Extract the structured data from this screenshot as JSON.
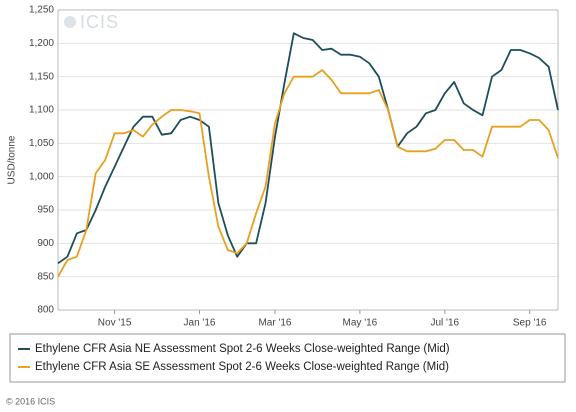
{
  "chart_data": {
    "type": "line",
    "watermark": "ICIS",
    "ylabel": "USD/tonne",
    "footer": "© 2016 ICIS",
    "categories": [
      null,
      null,
      null,
      null,
      null,
      null,
      "Nov '15",
      null,
      null,
      null,
      null,
      null,
      null,
      null,
      null,
      "Jan '16",
      null,
      null,
      null,
      null,
      null,
      null,
      null,
      "Mar '16",
      null,
      null,
      null,
      null,
      null,
      null,
      null,
      null,
      "May '16",
      null,
      null,
      null,
      null,
      null,
      null,
      null,
      null,
      "Jul '16",
      null,
      null,
      null,
      null,
      null,
      null,
      null,
      null,
      "Sep '16",
      null,
      null,
      null
    ],
    "series": [
      {
        "name": "Ethylene CFR Asia NE Assessment Spot 2-6 Weeks Close-weighted Range (Mid)",
        "color": "#1d4e5a",
        "values": [
          870,
          880,
          915,
          920,
          950,
          985,
          1015,
          1045,
          1075,
          1090,
          1090,
          1063,
          1065,
          1085,
          1090,
          1085,
          1075,
          960,
          912,
          880,
          900,
          900,
          960,
          1060,
          1140,
          1215,
          1208,
          1205,
          1190,
          1192,
          1183,
          1183,
          1180,
          1170,
          1150,
          1100,
          1045,
          1065,
          1075,
          1095,
          1100,
          1125,
          1142,
          1110,
          1100,
          1092,
          1150,
          1160,
          1190,
          1190,
          1185,
          1178,
          1165,
          1100
        ]
      },
      {
        "name": "Ethylene CFR Asia SE Assessment Spot 2-6 Weeks Close-weighted Range (Mid)",
        "color": "#e8a020",
        "values": [
          850,
          875,
          880,
          920,
          1005,
          1025,
          1065,
          1065,
          1070,
          1060,
          1078,
          1090,
          1100,
          1100,
          1098,
          1095,
          1000,
          925,
          890,
          885,
          900,
          945,
          985,
          1080,
          1125,
          1150,
          1150,
          1150,
          1160,
          1145,
          1125,
          1125,
          1125,
          1125,
          1130,
          1100,
          1045,
          1038,
          1038,
          1038,
          1042,
          1055,
          1055,
          1040,
          1040,
          1030,
          1075,
          1075,
          1075,
          1075,
          1085,
          1085,
          1070,
          1028
        ]
      }
    ],
    "ylim": [
      800,
      1250
    ],
    "yticks": [
      800,
      850,
      900,
      950,
      {
        "value": 1000,
        "label": "1,000"
      },
      {
        "value": 1050,
        "label": "1,050"
      },
      {
        "value": 1100,
        "label": "1,100"
      },
      {
        "value": 1150,
        "label": "1,150"
      },
      {
        "value": 1200,
        "label": "1,200"
      },
      {
        "value": 1250,
        "label": "1,250"
      }
    ],
    "grid": true
  }
}
